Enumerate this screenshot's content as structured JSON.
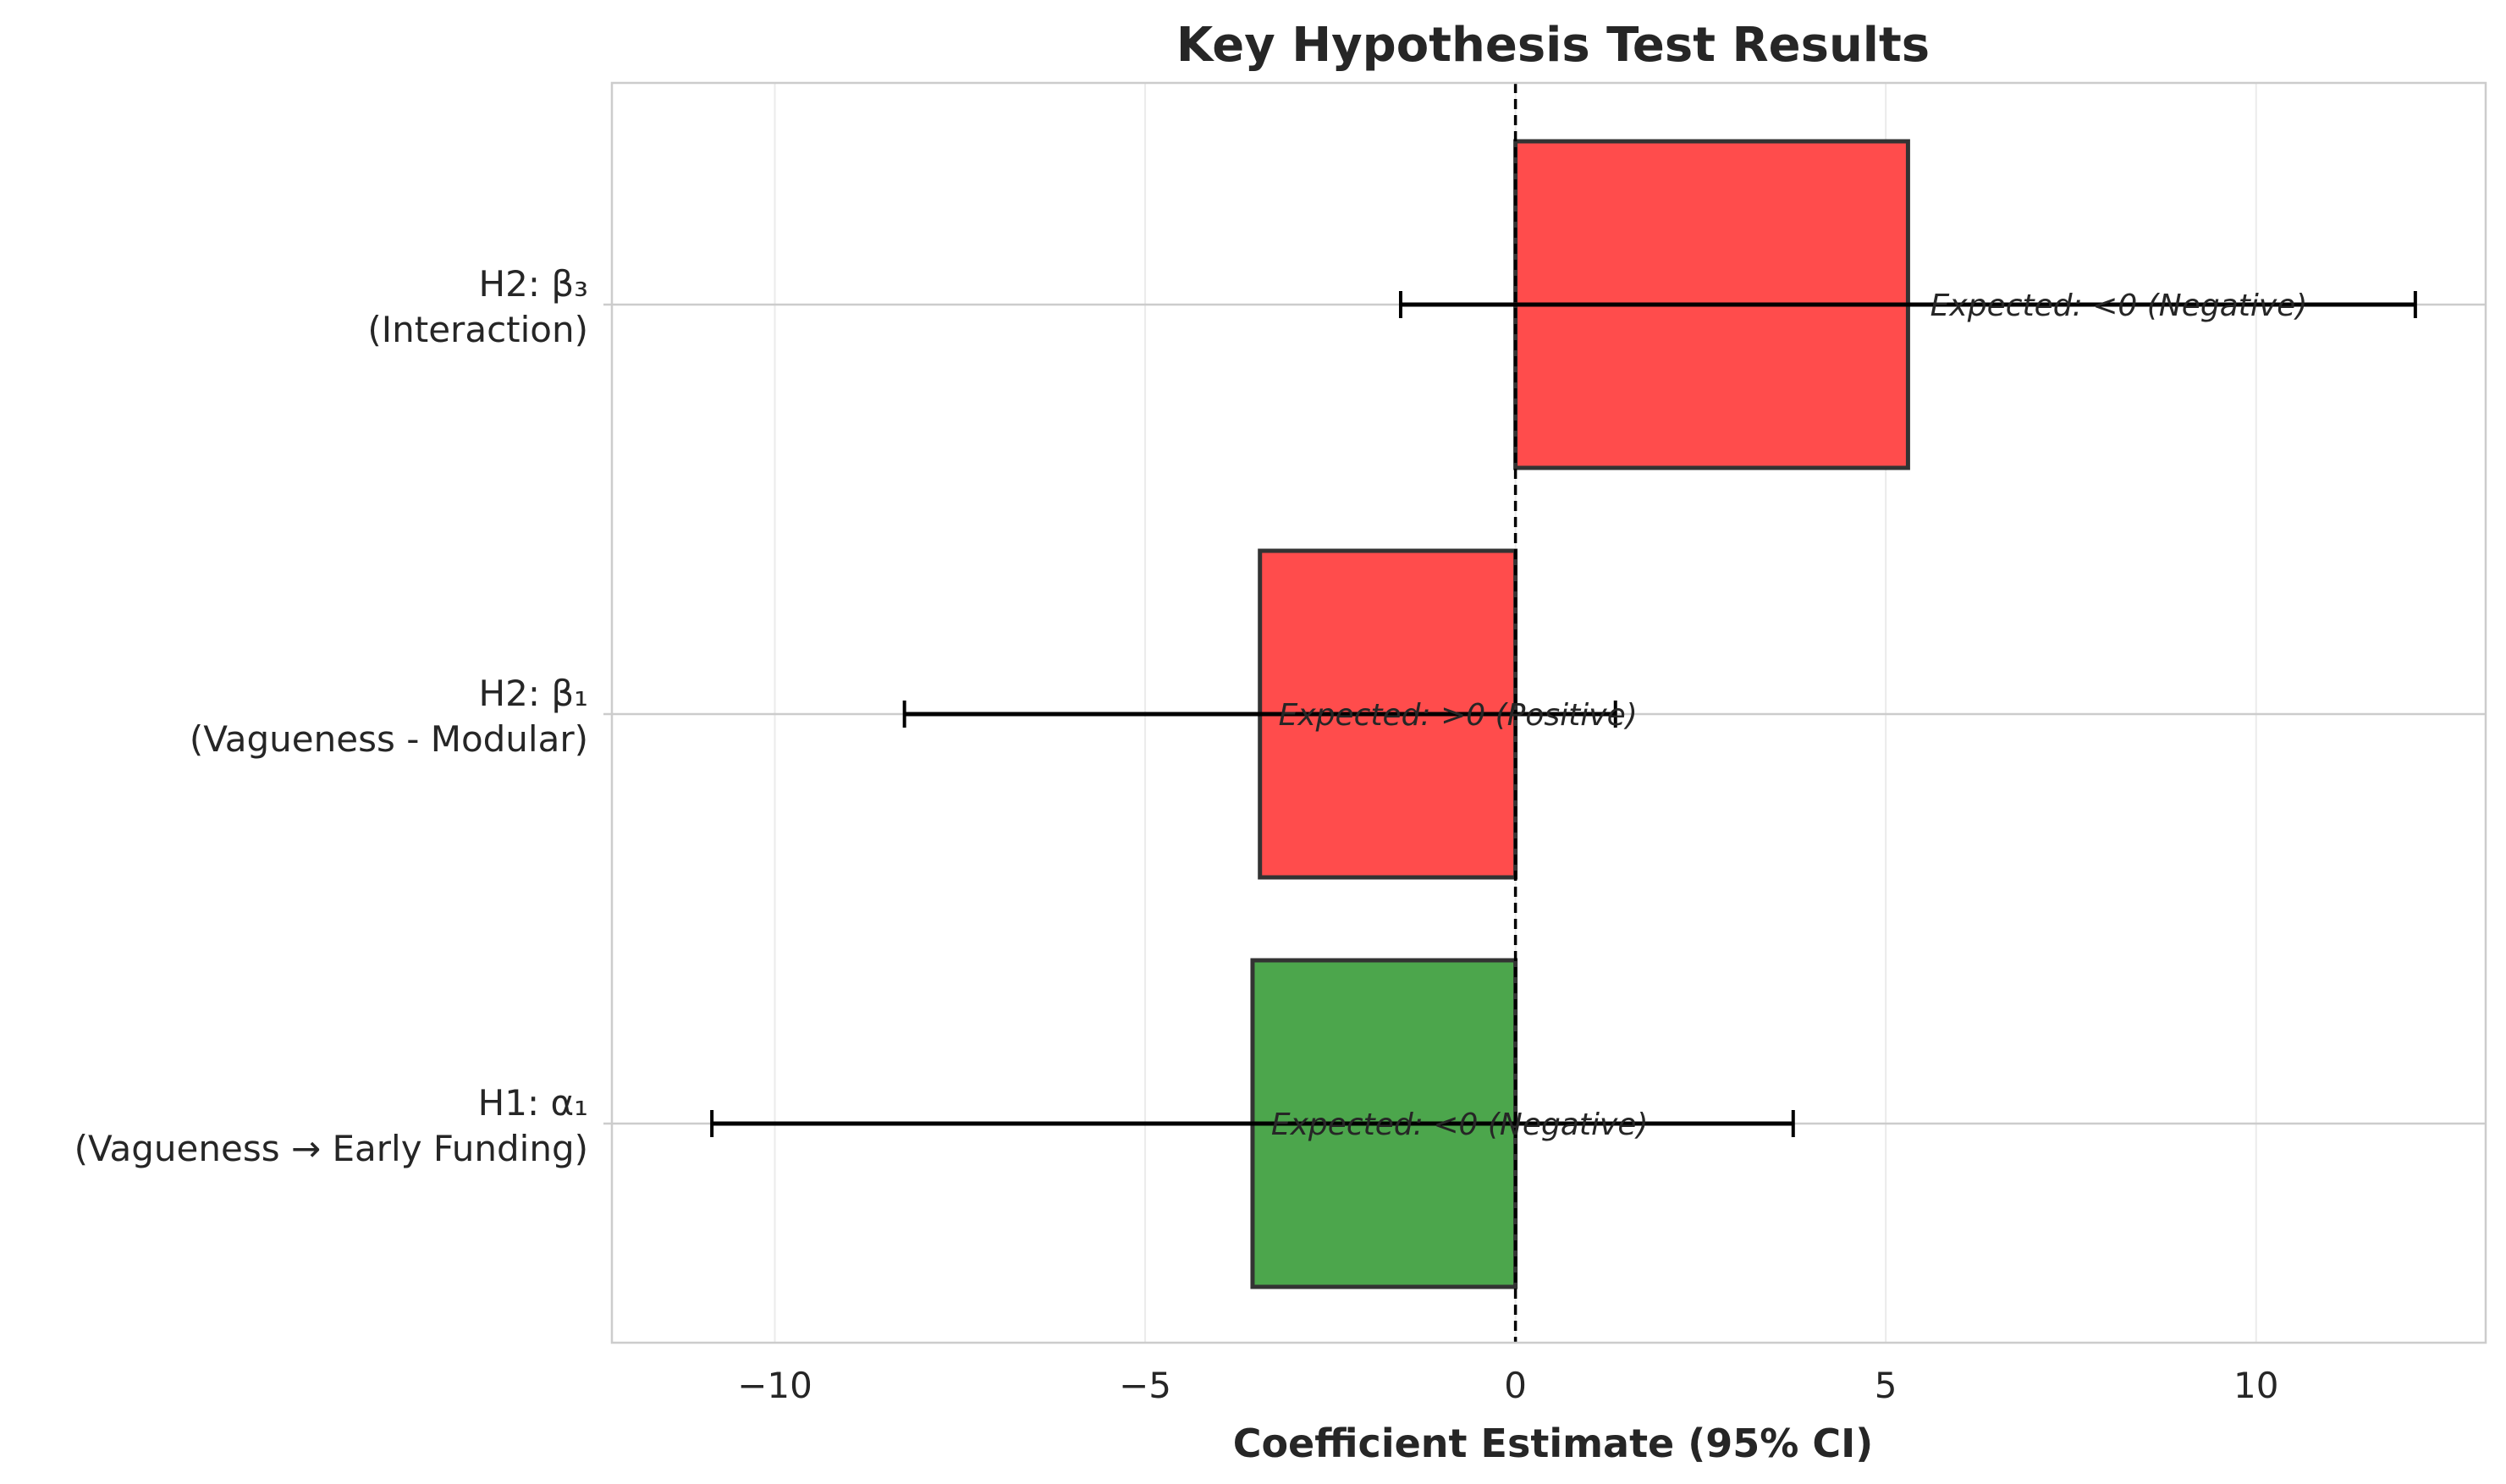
{
  "chart_data": {
    "type": "bar",
    "orientation": "horizontal",
    "title": "Key Hypothesis Test Results",
    "xlabel": "Coefficient Estimate (95% CI)",
    "ylabel": "",
    "xlim": [
      -12.2,
      13.1
    ],
    "xticks": [
      -10,
      -5,
      0,
      5,
      10
    ],
    "xtick_labels": [
      "−10",
      "−5",
      "0",
      "5",
      "10"
    ],
    "grid": true,
    "reference_line": {
      "x": 0,
      "style": "dashed"
    },
    "categories": [
      {
        "line1": "H1: α₁",
        "line2": "(Vagueness → Early Funding)"
      },
      {
        "line1": "H2: β₁",
        "line2": "(Vagueness - Modular)"
      },
      {
        "line1": "H2: β₃",
        "line2": "(Interaction)"
      }
    ],
    "values": [
      -3.55,
      -3.45,
      5.3
    ],
    "ci_lower": [
      -10.85,
      -8.25,
      -1.55
    ],
    "ci_upper": [
      3.75,
      1.35,
      12.15
    ],
    "colors": [
      "#4ca64c",
      "#ff4c4c",
      "#ff4c4c"
    ],
    "annotations": [
      {
        "text": "Expected: <0 (Negative)",
        "x": -3.3
      },
      {
        "text": "Expected: >0 (Positive)",
        "x": -3.2
      },
      {
        "text": "Expected: <0 (Negative)",
        "x": 5.6
      }
    ]
  }
}
